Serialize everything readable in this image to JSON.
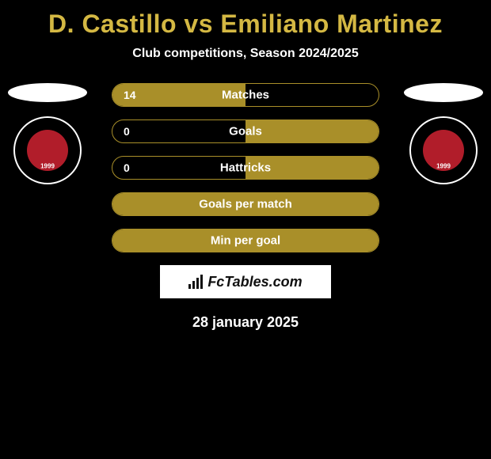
{
  "title": "D. Castillo vs Emiliano Martinez",
  "subtitle": "Club competitions, Season 2024/2025",
  "date": "28 january 2025",
  "brand": "FcTables.com",
  "logo_year": "1999",
  "colors": {
    "background": "#000000",
    "accent": "#a98f29",
    "title": "#d4b843",
    "text": "#ffffff",
    "brand_bg": "#ffffff",
    "brand_text": "#111111",
    "logo_red": "#b11d2a"
  },
  "stats": [
    {
      "label": "Matches",
      "left_value": "14",
      "right_value": "",
      "left_fill_pct": 100,
      "right_fill_pct": 0
    },
    {
      "label": "Goals",
      "left_value": "0",
      "right_value": "",
      "left_fill_pct": 0,
      "right_fill_pct": 100
    },
    {
      "label": "Hattricks",
      "left_value": "0",
      "right_value": "",
      "left_fill_pct": 0,
      "right_fill_pct": 100
    },
    {
      "label": "Goals per match",
      "left_value": "",
      "right_value": "",
      "left_fill_pct": 100,
      "right_fill_pct": 100
    },
    {
      "label": "Min per goal",
      "left_value": "",
      "right_value": "",
      "left_fill_pct": 100,
      "right_fill_pct": 100
    }
  ]
}
